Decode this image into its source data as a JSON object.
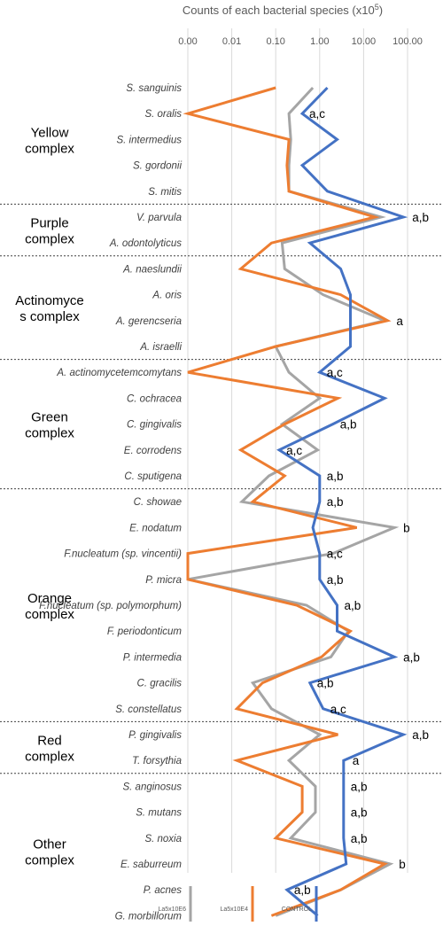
{
  "chart_data": {
    "type": "line",
    "orientation": "horizontal-x-values, vertical-categories",
    "xlabel": "Counts of each bacterial species (x10",
    "xlabel_sup": "5",
    "xlabel_close": ")",
    "x_scale": "log",
    "xlim": [
      0.001,
      300
    ],
    "x_ticks": [
      0.001,
      0.01,
      0.1,
      1,
      10,
      100
    ],
    "x_tick_labels": [
      "0.00",
      "0.01",
      "0.10",
      "1.00",
      "10.00",
      "100.00"
    ],
    "grid": "vertical",
    "legend_position": "bottom",
    "species": [
      "S. sanguinis",
      "S. oralis",
      "S. intermedius",
      "S. gordonii",
      "S. mitis",
      "V. parvula",
      "A. odontolyticus",
      "A. naeslundii",
      "A. oris",
      "A. gerencseria",
      "A. israelli",
      "A. actinomycetemcomytans",
      "C. ochracea",
      "C. gingivalis",
      "E. corrodens",
      "C. sputigena",
      "C. showae",
      "E. nodatum",
      "F.nucleatum (sp. vincentii)",
      "P. micra",
      "F.nucleatum (sp. polymorphum)",
      "F. periodonticum",
      "P. intermedia",
      "C. gracilis",
      "S. constellatus",
      "P. gingivalis",
      "T. forsythia",
      "S. anginosus",
      "S. mutans",
      "S. noxia",
      "E. saburreum",
      "P. acnes",
      "G. morbillorum"
    ],
    "groups": [
      {
        "name": [
          "Yellow",
          "complex"
        ],
        "start": 0,
        "end": 4
      },
      {
        "name": [
          "Purple",
          "complex"
        ],
        "start": 5,
        "end": 6
      },
      {
        "name": [
          "Actinomyce",
          "s complex"
        ],
        "start": 7,
        "end": 10
      },
      {
        "name": [
          "Green",
          "complex"
        ],
        "start": 11,
        "end": 15
      },
      {
        "name": [
          "Orange",
          "complex"
        ],
        "start": 16,
        "end": 24
      },
      {
        "name": [
          "Red",
          "complex"
        ],
        "start": 25,
        "end": 26
      },
      {
        "name": [
          "Other",
          "complex"
        ],
        "start": 27,
        "end": 32
      }
    ],
    "series": [
      {
        "name": "La5x10E6",
        "color": "#a5a5a5",
        "values": [
          0.7,
          0.2,
          0.22,
          0.2,
          0.2,
          25,
          0.14,
          0.16,
          1.2,
          30,
          0.1,
          0.2,
          1.0,
          0.14,
          0.9,
          0.07,
          0.017,
          50,
          2.0,
          0.001,
          0.5,
          4.5,
          1.8,
          0.03,
          0.08,
          1.0,
          0.2,
          0.8,
          0.8,
          0.22,
          40,
          3.0,
          0.1
        ]
      },
      {
        "name": "La5x10E4",
        "color": "#ed7d31",
        "values": [
          0.1,
          0.001,
          0.2,
          0.18,
          0.2,
          18,
          0.08,
          0.016,
          3.0,
          35,
          0.1,
          0.001,
          2.6,
          0.16,
          0.016,
          0.16,
          0.03,
          7.0,
          0.001,
          0.001,
          0.3,
          5.0,
          1.1,
          0.05,
          0.013,
          2.6,
          0.013,
          0.4,
          0.4,
          0.1,
          30,
          3.0,
          0.08
        ]
      },
      {
        "name": "CONTROL",
        "color": "#4472c4",
        "values": [
          1.5,
          0.4,
          2.5,
          0.4,
          1.5,
          80,
          0.6,
          3.0,
          5.0,
          5.0,
          5.0,
          1.0,
          30,
          2.0,
          0.12,
          1.0,
          1.0,
          0.7,
          1.0,
          1.0,
          2.5,
          2.5,
          50,
          0.6,
          1.2,
          80,
          3.5,
          3.5,
          3.5,
          3.5,
          4.0,
          0.18,
          0.9
        ]
      }
    ],
    "annotations": [
      {
        "row": 1,
        "text": "a,c"
      },
      {
        "row": 5,
        "text": "a,b"
      },
      {
        "row": 9,
        "text": "a"
      },
      {
        "row": 11,
        "text": "a,c"
      },
      {
        "row": 13,
        "text": "a,b"
      },
      {
        "row": 14,
        "text": "a,c"
      },
      {
        "row": 15,
        "text": "a,b"
      },
      {
        "row": 16,
        "text": "a,b"
      },
      {
        "row": 17,
        "text": "b"
      },
      {
        "row": 18,
        "text": "a,c"
      },
      {
        "row": 19,
        "text": "a,b"
      },
      {
        "row": 20,
        "text": "a,b"
      },
      {
        "row": 22,
        "text": "a,b"
      },
      {
        "row": 23,
        "text": "a,b"
      },
      {
        "row": 24,
        "text": "a,c"
      },
      {
        "row": 25,
        "text": "a,b"
      },
      {
        "row": 26,
        "text": "a"
      },
      {
        "row": 27,
        "text": "a,b"
      },
      {
        "row": 28,
        "text": "a,b"
      },
      {
        "row": 29,
        "text": "a,b"
      },
      {
        "row": 30,
        "text": "b"
      },
      {
        "row": 31,
        "text": "a,b"
      }
    ]
  }
}
